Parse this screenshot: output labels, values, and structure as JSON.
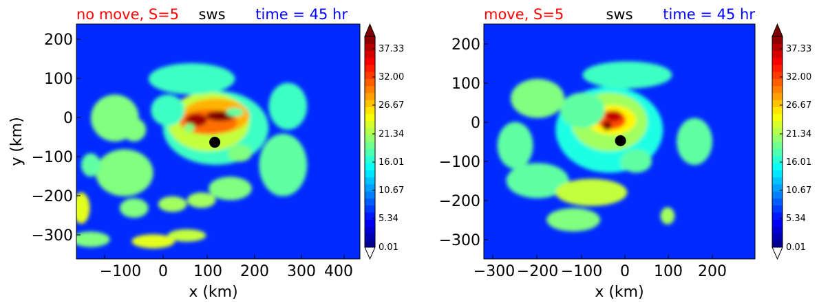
{
  "figure": {
    "panels": [
      {
        "title_left": "no move, S=5",
        "title_center": "sws",
        "title_right": "time = 45 hr",
        "xlabel": "x (km)",
        "ylabel": "y (km)",
        "xticks": [
          "−100",
          "0",
          "100",
          "200",
          "300",
          "400"
        ],
        "yticks": [
          "200",
          "100",
          "0",
          "−100",
          "−200",
          "−300"
        ],
        "colorbar_ticks": [
          "37.33",
          "32.00",
          "26.67",
          "21.34",
          "16.01",
          "10.67",
          "5.34",
          "0.01"
        ]
      },
      {
        "title_left": "move, S=5",
        "title_center": "sws",
        "title_right": "time = 45 hr",
        "xlabel": "x (km)",
        "ylabel": "",
        "xticks": [
          "−300",
          "−200",
          "−100",
          "0",
          "100",
          "200"
        ],
        "yticks": [
          "200",
          "100",
          "0",
          "−100",
          "−200",
          "−300"
        ],
        "colorbar_ticks": [
          "37.33",
          "32.00",
          "26.67",
          "21.34",
          "16.01",
          "10.67",
          "5.34",
          "0.01"
        ]
      }
    ]
  },
  "chart_data": [
    {
      "type": "heatmap",
      "title": "no move, S=5 sws time = 45 hr",
      "xlabel": "x (km)",
      "ylabel": "y (km)",
      "xlim": [
        -180,
        410
      ],
      "ylim": [
        -360,
        240
      ],
      "xticks": [
        -100,
        0,
        100,
        200,
        300,
        400
      ],
      "yticks": [
        200,
        100,
        0,
        -100,
        -200,
        -300
      ],
      "colormap": "jet",
      "color_range": [
        0.01,
        40
      ],
      "colorbar_ticks": [
        0.01,
        5.34,
        10.67,
        16.01,
        21.34,
        26.67,
        32.0,
        37.33
      ],
      "center_marker": {
        "x": 108,
        "y": -62
      },
      "background_value": 7,
      "features": [
        {
          "x": 110,
          "y": -25,
          "sx": 110,
          "sy": 95,
          "value": 11
        },
        {
          "x": 95,
          "y": -10,
          "sx": 85,
          "sy": 75,
          "value": 5
        },
        {
          "x": 110,
          "y": 5,
          "sx": 70,
          "sy": 45,
          "value": 5
        },
        {
          "x": 95,
          "y": -10,
          "sx": 60,
          "sy": 32,
          "value": 3
        },
        {
          "x": 70,
          "y": -5,
          "sx": 22,
          "sy": 16,
          "value": 8
        },
        {
          "x": 120,
          "y": 5,
          "sx": 30,
          "sy": 13,
          "value": 8
        },
        {
          "x": 150,
          "y": 15,
          "sx": 18,
          "sy": 11,
          "value": 4
        },
        {
          "x": 55,
          "y": -25,
          "sx": 11,
          "sy": 11,
          "value": 6
        },
        {
          "x": 160,
          "y": -90,
          "sx": 25,
          "sy": 22,
          "value": 6
        },
        {
          "x": 10,
          "y": 20,
          "sx": 35,
          "sy": 40,
          "value": 3
        },
        {
          "x": -100,
          "y": 0,
          "sx": 50,
          "sy": 60,
          "value": 6
        },
        {
          "x": -110,
          "y": -15,
          "sx": 16,
          "sy": 22,
          "value": 6
        },
        {
          "x": -80,
          "y": -140,
          "sx": 60,
          "sy": 60,
          "value": 5
        },
        {
          "x": -60,
          "y": -30,
          "sx": 25,
          "sy": 30,
          "value": 5
        },
        {
          "x": -170,
          "y": -230,
          "sx": 18,
          "sy": 40,
          "value": 10
        },
        {
          "x": -150,
          "y": -310,
          "sx": 40,
          "sy": 20,
          "value": 6
        },
        {
          "x": -20,
          "y": -315,
          "sx": 45,
          "sy": 18,
          "value": 9
        },
        {
          "x": 50,
          "y": -300,
          "sx": 40,
          "sy": 16,
          "value": 8
        },
        {
          "x": 20,
          "y": -220,
          "sx": 30,
          "sy": 20,
          "value": 7
        },
        {
          "x": 80,
          "y": -210,
          "sx": 30,
          "sy": 20,
          "value": 7
        },
        {
          "x": -60,
          "y": -230,
          "sx": 30,
          "sy": 25,
          "value": 6
        },
        {
          "x": 140,
          "y": -180,
          "sx": 45,
          "sy": 30,
          "value": 5
        },
        {
          "x": 250,
          "y": -120,
          "sx": 50,
          "sy": 80,
          "value": 4
        },
        {
          "x": -150,
          "y": -120,
          "sx": 20,
          "sy": 30,
          "value": 4
        },
        {
          "x": 60,
          "y": 100,
          "sx": 90,
          "sy": 40,
          "value": 3
        },
        {
          "x": 260,
          "y": 30,
          "sx": 40,
          "sy": 60,
          "value": 3
        }
      ]
    },
    {
      "type": "heatmap",
      "title": "move, S=5 sws time = 45 hr",
      "xlabel": "x (km)",
      "ylabel": "",
      "xlim": [
        -320,
        285
      ],
      "ylim": [
        -350,
        250
      ],
      "xticks": [
        -300,
        -200,
        -100,
        0,
        100,
        200
      ],
      "yticks": [
        200,
        100,
        0,
        -100,
        -200,
        -300
      ],
      "colormap": "jet",
      "color_range": [
        0.01,
        40
      ],
      "colorbar_ticks": [
        0.01,
        5.34,
        10.67,
        16.01,
        21.34,
        26.67,
        32.0,
        37.33
      ],
      "center_marker": {
        "x": -15,
        "y": -48
      },
      "background_value": 7,
      "features": [
        {
          "x": -40,
          "y": -20,
          "sx": 120,
          "sy": 110,
          "value": 10
        },
        {
          "x": -40,
          "y": 0,
          "sx": 85,
          "sy": 75,
          "value": 5
        },
        {
          "x": -35,
          "y": 5,
          "sx": 55,
          "sy": 38,
          "value": 4
        },
        {
          "x": -35,
          "y": 5,
          "sx": 32,
          "sy": 24,
          "value": 6
        },
        {
          "x": -30,
          "y": 15,
          "sx": 18,
          "sy": 14,
          "value": 6
        },
        {
          "x": -45,
          "y": -10,
          "sx": 10,
          "sy": 12,
          "value": 4
        },
        {
          "x": 0,
          "y": -110,
          "sx": 14,
          "sy": 11,
          "value": 7
        },
        {
          "x": 20,
          "y": -100,
          "sx": 35,
          "sy": 30,
          "value": 4
        },
        {
          "x": -100,
          "y": 30,
          "sx": 50,
          "sy": 45,
          "value": 4
        },
        {
          "x": -200,
          "y": 60,
          "sx": 60,
          "sy": 50,
          "value": 6
        },
        {
          "x": -230,
          "y": -150,
          "sx": 30,
          "sy": 20,
          "value": 9
        },
        {
          "x": -200,
          "y": -150,
          "sx": 70,
          "sy": 45,
          "value": 4
        },
        {
          "x": -80,
          "y": -180,
          "sx": 80,
          "sy": 35,
          "value": 8
        },
        {
          "x": -120,
          "y": -250,
          "sx": 60,
          "sy": 30,
          "value": 5
        },
        {
          "x": 90,
          "y": -240,
          "sx": 16,
          "sy": 22,
          "value": 7
        },
        {
          "x": -250,
          "y": -60,
          "sx": 40,
          "sy": 60,
          "value": 4
        },
        {
          "x": 150,
          "y": -50,
          "sx": 40,
          "sy": 60,
          "value": 4
        },
        {
          "x": 0,
          "y": 120,
          "sx": 100,
          "sy": 35,
          "value": 3
        }
      ]
    }
  ]
}
